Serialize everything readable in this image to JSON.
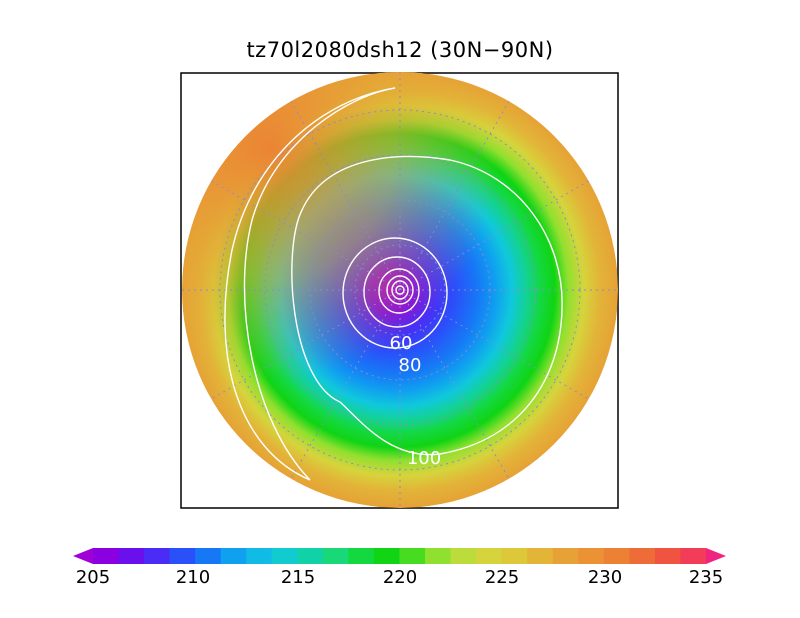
{
  "title": "tz70l2080dsh12 (30N−90N)",
  "map": {
    "projection": "north-polar-stereographic",
    "lat_range": [
      "30N",
      "90N"
    ],
    "contour_labels": [
      "60",
      "80",
      "100"
    ]
  },
  "colorbar": {
    "labels": [
      "205",
      "210",
      "215",
      "220",
      "225",
      "230",
      "235"
    ],
    "min": 205,
    "max": 235,
    "step": 1,
    "colors": [
      "#a000d8",
      "#8a00e0",
      "#6a10ec",
      "#4a2cf6",
      "#2a50fa",
      "#1778f6",
      "#10a0f0",
      "#10bce6",
      "#10ccd0",
      "#10d2a8",
      "#18d878",
      "#14d840",
      "#10d414",
      "#48dc20",
      "#90e030",
      "#bcdc3c",
      "#d6d43c",
      "#ddc83a",
      "#e2b438",
      "#e6a236",
      "#ea9234",
      "#ec8034",
      "#ee6c38",
      "#f05440",
      "#f23c58",
      "#f02480"
    ]
  }
}
